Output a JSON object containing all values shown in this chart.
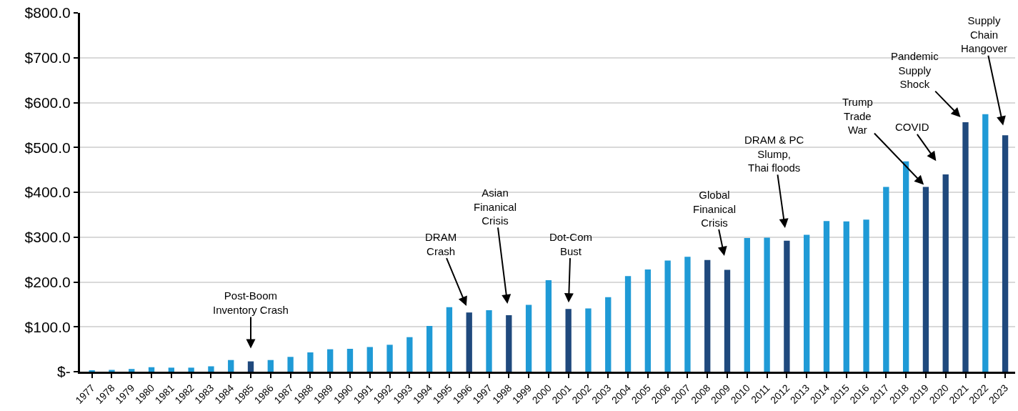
{
  "chart_data": {
    "type": "bar",
    "categories": [
      "1977",
      "1978",
      "1979",
      "1980",
      "1981",
      "1982",
      "1983",
      "1984",
      "1985",
      "1986",
      "1987",
      "1988",
      "1989",
      "1990",
      "1991",
      "1992",
      "1993",
      "1994",
      "1995",
      "1996",
      "1997",
      "1998",
      "1999",
      "2000",
      "2001",
      "2002",
      "2003",
      "2004",
      "2005",
      "2006",
      "2007",
      "2008",
      "2009",
      "2010",
      "2011",
      "2012",
      "2013",
      "2014",
      "2015",
      "2016",
      "2017",
      "2018",
      "2019",
      "2020",
      "2021",
      "2022",
      "2023"
    ],
    "values": [
      3,
      4,
      6,
      10,
      9,
      9,
      12,
      26,
      23,
      26,
      33,
      43,
      50,
      51,
      55,
      60,
      77,
      102,
      144,
      132,
      137,
      126,
      149,
      204,
      140,
      141,
      166,
      213,
      228,
      248,
      256,
      249,
      227,
      298,
      299,
      292,
      305,
      336,
      335,
      339,
      412,
      469,
      412,
      440,
      556,
      574,
      527
    ],
    "colors": [
      "#1f9ad6",
      "#1f9ad6",
      "#1f9ad6",
      "#1f9ad6",
      "#1f9ad6",
      "#1f9ad6",
      "#1f9ad6",
      "#1f9ad6",
      "#1f497d",
      "#1f9ad6",
      "#1f9ad6",
      "#1f9ad6",
      "#1f9ad6",
      "#1f9ad6",
      "#1f9ad6",
      "#1f9ad6",
      "#1f9ad6",
      "#1f9ad6",
      "#1f9ad6",
      "#1f497d",
      "#1f9ad6",
      "#1f497d",
      "#1f9ad6",
      "#1f9ad6",
      "#1f497d",
      "#1f9ad6",
      "#1f9ad6",
      "#1f9ad6",
      "#1f9ad6",
      "#1f9ad6",
      "#1f9ad6",
      "#1f497d",
      "#1f497d",
      "#1f9ad6",
      "#1f9ad6",
      "#1f497d",
      "#1f9ad6",
      "#1f9ad6",
      "#1f9ad6",
      "#1f9ad6",
      "#1f9ad6",
      "#1f9ad6",
      "#1f497d",
      "#1f497d",
      "#1f497d",
      "#1f9ad6",
      "#1f497d"
    ],
    "ylim": [
      0,
      800
    ],
    "yticks": [
      {
        "value": 0,
        "label": "$-"
      },
      {
        "value": 100,
        "label": "$100.0"
      },
      {
        "value": 200,
        "label": "$200.0"
      },
      {
        "value": 300,
        "label": "$300.0"
      },
      {
        "value": 400,
        "label": "$400.0"
      },
      {
        "value": 500,
        "label": "$500.0"
      },
      {
        "value": 600,
        "label": "$600.0"
      },
      {
        "value": 700,
        "label": "$700.0"
      },
      {
        "value": 800,
        "label": "$800.0"
      }
    ],
    "grid": "y",
    "legend": false,
    "annotations": [
      {
        "text": "Post-Boom\nInventory Crash",
        "x": "1985",
        "y": 23
      },
      {
        "text": "DRAM\nCrash",
        "x": "1996",
        "y": 132
      },
      {
        "text": "Asian\nFinanical\nCrisis",
        "x": "1998",
        "y": 126
      },
      {
        "text": "Dot-Com\nBust",
        "x": "2001",
        "y": 140
      },
      {
        "text": "Global\nFinanical\nCrisis",
        "x": "2009",
        "y": 227
      },
      {
        "text": "DRAM & PC\nSlump,\nThai floods",
        "x": "2012",
        "y": 292
      },
      {
        "text": "Trump\nTrade\nWar",
        "x": "2019",
        "y": 412
      },
      {
        "text": "COVID",
        "x": "2020",
        "y": 440
      },
      {
        "text": "Pandemic\nSupply\nShock",
        "x": "2021",
        "y": 556
      },
      {
        "text": "Supply\nChain\nHangover",
        "x": "2023",
        "y": 527
      }
    ]
  }
}
